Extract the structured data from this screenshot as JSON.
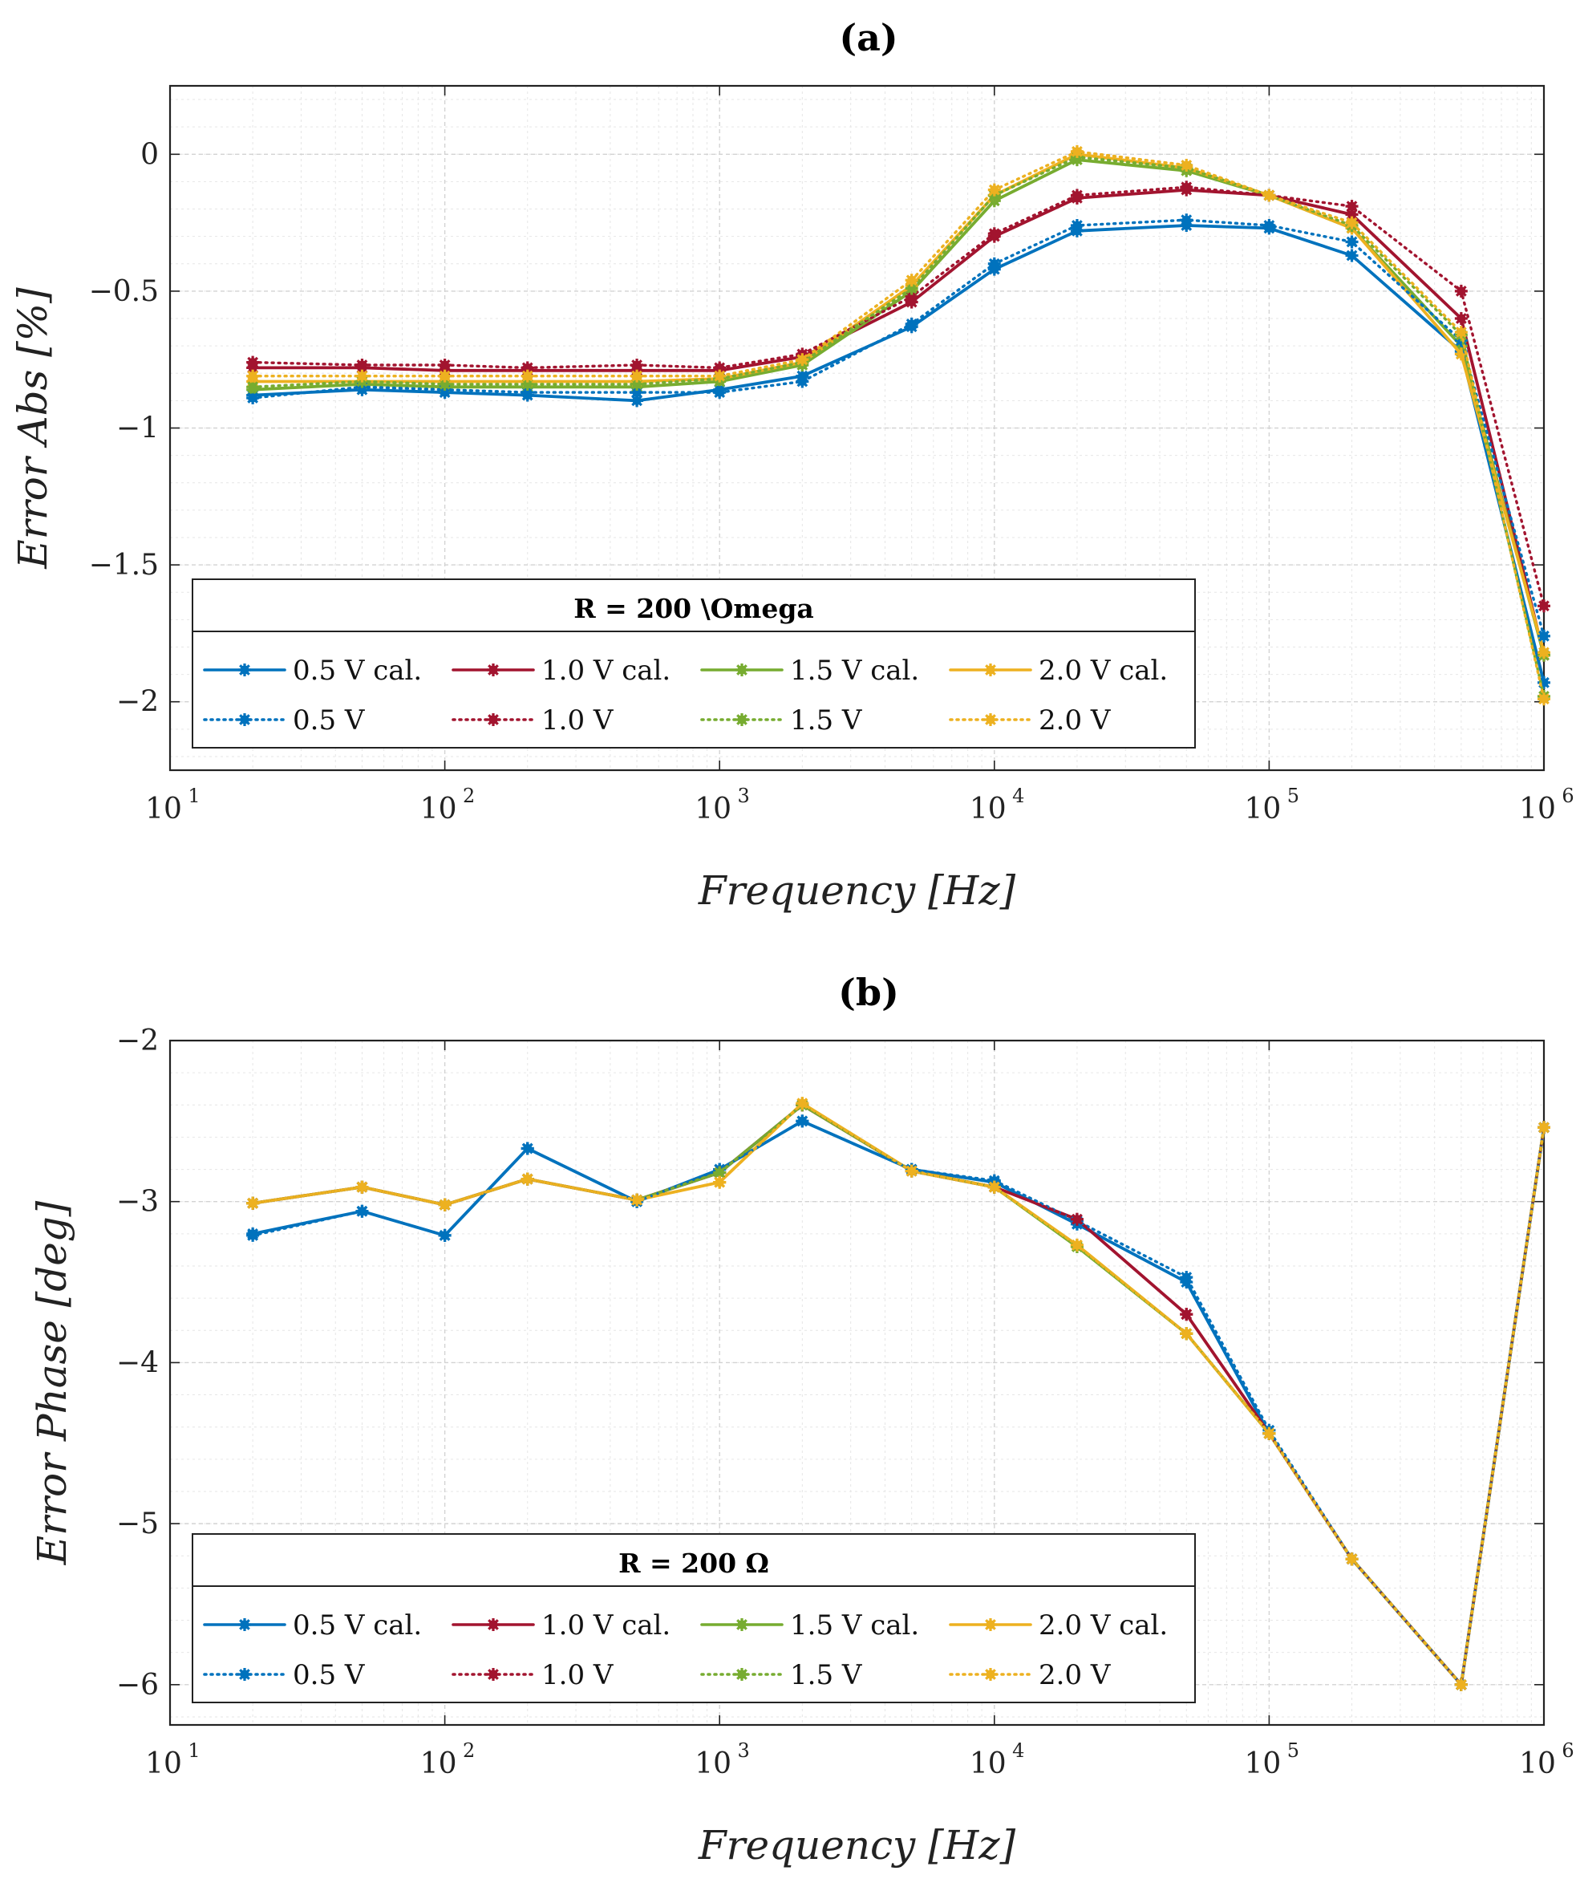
{
  "chart_data": [
    {
      "type": "line",
      "panel": "a",
      "title": "(a)",
      "xlabel": "Frequency [Hz]",
      "ylabel": "Error Abs [%]",
      "xscale": "log",
      "xlim": [
        10,
        1000000
      ],
      "ylim": [
        -2.25,
        0.25
      ],
      "yticks": [
        0,
        -0.5,
        -1,
        -1.5,
        -2
      ],
      "ytick_labels": [
        "0",
        "-0.5",
        "-1",
        "-1.5",
        "-2"
      ],
      "xtick_base": "10",
      "xtick_exponents": [
        "1",
        "2",
        "3",
        "4",
        "5",
        "6"
      ],
      "grid": true,
      "legend": {
        "title": "R = 200 \\Omega",
        "location": "lower-left",
        "entries": [
          "0.5 V cal.",
          "1.0 V cal.",
          "1.5 V cal.",
          "2.0 V cal.",
          "0.5 V",
          "1.0 V",
          "1.5 V",
          "2.0 V"
        ]
      },
      "x": [
        20,
        50,
        100,
        200,
        500,
        1000,
        2000,
        5000,
        10000,
        20000,
        50000,
        100000,
        200000,
        500000,
        1000000
      ],
      "series": [
        {
          "name": "0.5 V cal.",
          "color": "#0072BD",
          "style": "solid",
          "values": [
            -0.88,
            -0.86,
            -0.87,
            -0.88,
            -0.9,
            -0.86,
            -0.81,
            -0.63,
            -0.42,
            -0.28,
            -0.26,
            -0.27,
            -0.37,
            -0.72,
            -1.93
          ]
        },
        {
          "name": "1.0 V cal.",
          "color": "#A2142F",
          "style": "solid",
          "values": [
            -0.78,
            -0.78,
            -0.79,
            -0.79,
            -0.79,
            -0.79,
            -0.74,
            -0.54,
            -0.3,
            -0.16,
            -0.13,
            -0.15,
            -0.22,
            -0.6,
            -1.83
          ]
        },
        {
          "name": "1.5 V cal.",
          "color": "#77AC30",
          "style": "solid",
          "values": [
            -0.86,
            -0.84,
            -0.85,
            -0.85,
            -0.85,
            -0.83,
            -0.77,
            -0.5,
            -0.17,
            -0.02,
            -0.06,
            -0.15,
            -0.27,
            -0.7,
            -1.83
          ]
        },
        {
          "name": "2.0 V cal.",
          "color": "#EDB120",
          "style": "solid",
          "values": [
            -0.83,
            -0.83,
            -0.83,
            -0.83,
            -0.83,
            -0.82,
            -0.76,
            -0.48,
            -0.15,
            0.0,
            -0.05,
            -0.15,
            -0.27,
            -0.73,
            -1.82
          ]
        },
        {
          "name": "0.5 V",
          "color": "#0072BD",
          "style": "dotted",
          "values": [
            -0.89,
            -0.85,
            -0.86,
            -0.87,
            -0.87,
            -0.87,
            -0.83,
            -0.62,
            -0.4,
            -0.26,
            -0.24,
            -0.26,
            -0.32,
            -0.68,
            -1.76
          ]
        },
        {
          "name": "1.0 V",
          "color": "#A2142F",
          "style": "dotted",
          "values": [
            -0.76,
            -0.77,
            -0.77,
            -0.78,
            -0.77,
            -0.78,
            -0.73,
            -0.52,
            -0.29,
            -0.15,
            -0.12,
            -0.15,
            -0.19,
            -0.5,
            -1.65
          ]
        },
        {
          "name": "1.5 V",
          "color": "#77AC30",
          "style": "dotted",
          "values": [
            -0.85,
            -0.83,
            -0.84,
            -0.84,
            -0.84,
            -0.82,
            -0.76,
            -0.49,
            -0.15,
            -0.01,
            -0.05,
            -0.15,
            -0.26,
            -0.66,
            -1.98
          ]
        },
        {
          "name": "2.0 V",
          "color": "#EDB120",
          "style": "dotted",
          "values": [
            -0.81,
            -0.81,
            -0.81,
            -0.81,
            -0.81,
            -0.81,
            -0.75,
            -0.46,
            -0.13,
            0.01,
            -0.04,
            -0.15,
            -0.25,
            -0.65,
            -1.99
          ]
        }
      ]
    },
    {
      "type": "line",
      "panel": "b",
      "title": "(b)",
      "xlabel": "Frequency [Hz]",
      "ylabel": "Error Phase [deg]",
      "xscale": "log",
      "xlim": [
        10,
        1000000
      ],
      "ylim": [
        -6.25,
        -2.0
      ],
      "yticks": [
        -2,
        -3,
        -4,
        -5,
        -6
      ],
      "ytick_labels": [
        "-2",
        "-3",
        "-4",
        "-5",
        "-6"
      ],
      "xtick_base": "10",
      "xtick_exponents": [
        "1",
        "2",
        "3",
        "4",
        "5",
        "6"
      ],
      "grid": true,
      "legend": {
        "title": "R = 200 Ω",
        "location": "lower-left",
        "entries": [
          "0.5 V cal.",
          "1.0 V cal.",
          "1.5 V cal.",
          "2.0 V cal.",
          "0.5 V",
          "1.0 V",
          "1.5 V",
          "2.0 V"
        ]
      },
      "x": [
        20,
        50,
        100,
        200,
        500,
        1000,
        2000,
        5000,
        10000,
        20000,
        50000,
        100000,
        200000,
        500000,
        1000000
      ],
      "series": [
        {
          "name": "0.5 V cal.",
          "color": "#0072BD",
          "style": "solid",
          "values": [
            -3.2,
            -3.06,
            -3.21,
            -2.67,
            -3.0,
            -2.8,
            -2.5,
            -2.8,
            -2.88,
            -3.14,
            -3.5,
            -4.44,
            -5.22,
            -6.0,
            -2.54
          ]
        },
        {
          "name": "1.0 V cal.",
          "color": "#A2142F",
          "style": "solid",
          "values": [
            -3.01,
            -2.91,
            -3.02,
            -2.86,
            -2.99,
            -2.82,
            -2.4,
            -2.81,
            -2.91,
            -3.11,
            -3.7,
            -4.44,
            -5.22,
            -6.0,
            -2.54
          ]
        },
        {
          "name": "1.5 V cal.",
          "color": "#77AC30",
          "style": "solid",
          "values": [
            -3.01,
            -2.91,
            -3.02,
            -2.86,
            -2.99,
            -2.82,
            -2.4,
            -2.81,
            -2.91,
            -3.28,
            -3.82,
            -4.44,
            -5.22,
            -6.0,
            -2.54
          ]
        },
        {
          "name": "2.0 V cal.",
          "color": "#EDB120",
          "style": "solid",
          "values": [
            -3.01,
            -2.91,
            -3.02,
            -2.86,
            -2.99,
            -2.88,
            -2.39,
            -2.81,
            -2.91,
            -3.27,
            -3.82,
            -4.44,
            -5.22,
            -6.0,
            -2.54
          ]
        },
        {
          "name": "0.5 V",
          "color": "#0072BD",
          "style": "dotted",
          "values": [
            -3.21,
            -3.06,
            -3.21,
            -2.67,
            -3.0,
            -2.8,
            -2.5,
            -2.8,
            -2.87,
            -3.12,
            -3.47,
            -4.42,
            -5.22,
            -6.0,
            -2.54
          ]
        },
        {
          "name": "1.0 V",
          "color": "#A2142F",
          "style": "dotted",
          "values": [
            -3.01,
            -2.91,
            -3.02,
            -2.86,
            -2.99,
            -2.82,
            -2.4,
            -2.81,
            -2.91,
            -3.11,
            -3.7,
            -4.44,
            -5.22,
            -6.0,
            -2.54
          ]
        },
        {
          "name": "1.5 V",
          "color": "#77AC30",
          "style": "dotted",
          "values": [
            -3.01,
            -2.91,
            -3.02,
            -2.86,
            -2.99,
            -2.82,
            -2.4,
            -2.81,
            -2.91,
            -3.28,
            -3.82,
            -4.44,
            -5.22,
            -6.0,
            -2.54
          ]
        },
        {
          "name": "2.0 V",
          "color": "#EDB120",
          "style": "dotted",
          "values": [
            -3.01,
            -2.91,
            -3.02,
            -2.86,
            -2.99,
            -2.88,
            -2.39,
            -2.81,
            -2.91,
            -3.27,
            -3.82,
            -4.44,
            -5.22,
            -6.0,
            -2.54
          ]
        }
      ]
    }
  ]
}
